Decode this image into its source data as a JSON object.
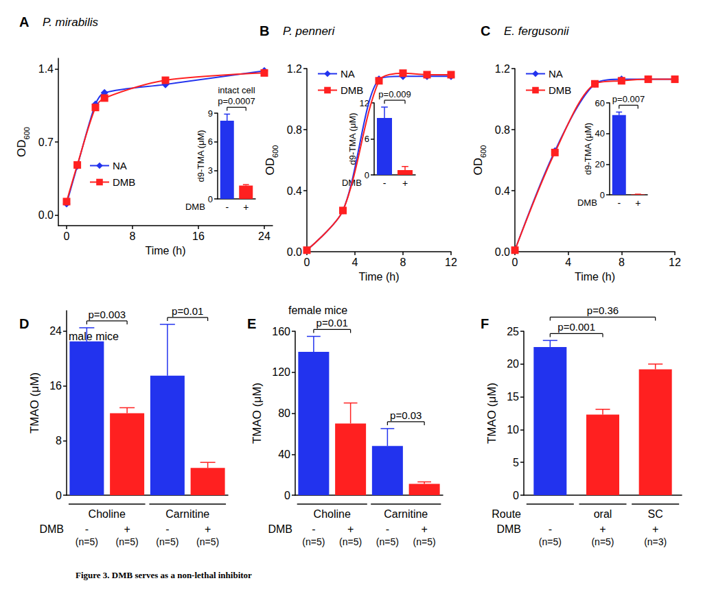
{
  "title": "Figure 3. DMB serves as a non-lethal inhibitor",
  "chart_data": [
    {
      "label": "A",
      "type": "line",
      "title": "P. mirabilis",
      "xlabel": "Time (h)",
      "ylabel": "OD600",
      "xlim": [
        -1,
        25
      ],
      "xticks": [
        0,
        8,
        16,
        24
      ],
      "ylim": [
        -0.1,
        1.5
      ],
      "yticks": [
        {
          "value": 0,
          "label": "0.0"
        },
        0.7,
        1.4
      ],
      "legend": "lower left",
      "x": [
        0,
        1.3,
        3.5,
        4.6,
        12,
        24
      ],
      "series": [
        {
          "name": "NA",
          "color": "#2233ee",
          "marker": "diamond",
          "values": [
            0.11,
            0.47,
            1.06,
            1.17,
            1.25,
            1.38
          ]
        },
        {
          "name": "DMB",
          "color": "#ff2020",
          "marker": "square",
          "values": [
            0.13,
            0.48,
            1.03,
            1.12,
            1.29,
            1.36
          ]
        }
      ],
      "inset": {
        "type": "bar",
        "ylabel": "d9-TMA (μM)",
        "xlabel": "DMB",
        "categories": [
          "-",
          "+"
        ],
        "values": [
          8.2,
          1.4
        ],
        "errors": [
          0.7,
          0.1
        ],
        "colors": [
          "#2233ee",
          "#ff2020"
        ],
        "ylim": [
          0,
          9
        ],
        "yticks": [
          0,
          3,
          6,
          9
        ],
        "annotations": [
          "intact cell"
        ],
        "comparisons": [
          {
            "from": 0,
            "to": 1,
            "label": "p=0.0007"
          }
        ]
      }
    },
    {
      "label": "B",
      "type": "line",
      "title": "P. penneri",
      "xlabel": "Time (h)",
      "ylabel": "OD600",
      "xlim": [
        0,
        12
      ],
      "xticks": [
        0,
        4,
        8,
        12
      ],
      "ylim": [
        0,
        1.2
      ],
      "yticks": [
        {
          "value": 0,
          "label": "0.0"
        },
        0.4,
        0.8,
        1.2
      ],
      "legend": "upper left",
      "x": [
        0,
        3,
        6,
        8,
        10,
        12
      ],
      "series": [
        {
          "name": "NA",
          "color": "#2233ee",
          "marker": "diamond",
          "values": [
            0.01,
            0.27,
            1.13,
            1.15,
            1.15,
            1.15
          ]
        },
        {
          "name": "DMB",
          "color": "#ff2020",
          "marker": "square",
          "values": [
            0.01,
            0.27,
            1.12,
            1.17,
            1.16,
            1.16
          ]
        }
      ],
      "inset": {
        "type": "bar",
        "ylabel": "d9-TMA (μM)",
        "xlabel": "DMB",
        "categories": [
          "-",
          "+"
        ],
        "values": [
          9.5,
          0.8
        ],
        "errors": [
          1.8,
          0.6
        ],
        "colors": [
          "#2233ee",
          "#ff2020"
        ],
        "ylim": [
          0,
          12
        ],
        "yticks": [
          0,
          6,
          12
        ],
        "comparisons": [
          {
            "from": 0,
            "to": 1,
            "label": "p=0.009"
          }
        ]
      }
    },
    {
      "label": "C",
      "type": "line",
      "title": "E. fergusonii",
      "xlabel": "Time (h)",
      "ylabel": "OD600",
      "xlim": [
        0,
        12
      ],
      "xticks": [
        0,
        4,
        8,
        12
      ],
      "ylim": [
        0,
        1.2
      ],
      "yticks": [
        {
          "value": 0,
          "label": "0.0"
        },
        0.4,
        0.8,
        1.2
      ],
      "legend": "upper left",
      "x": [
        0,
        3,
        6,
        8,
        10,
        12
      ],
      "series": [
        {
          "name": "NA",
          "color": "#2233ee",
          "marker": "diamond",
          "values": [
            0.01,
            0.66,
            1.1,
            1.13,
            1.13,
            1.13
          ]
        },
        {
          "name": "DMB",
          "color": "#ff2020",
          "marker": "square",
          "values": [
            0.01,
            0.65,
            1.1,
            1.12,
            1.13,
            1.13
          ]
        }
      ],
      "inset": {
        "type": "bar",
        "ylabel": "d9-TMA (μM)",
        "xlabel": "DMB",
        "categories": [
          "-",
          "+"
        ],
        "values": [
          52,
          0.3
        ],
        "errors": [
          2,
          0.1
        ],
        "colors": [
          "#2233ee",
          "#ff2020"
        ],
        "ylim": [
          0,
          60
        ],
        "yticks": [
          0,
          20,
          40,
          60
        ],
        "comparisons": [
          {
            "from": 0,
            "to": 1,
            "label": "p=0.007"
          }
        ]
      }
    },
    {
      "label": "D",
      "type": "bar",
      "subtitle": "male mice",
      "ylabel": "TMAO (μM)",
      "ylim": [
        0,
        27
      ],
      "yticks": [
        0,
        8,
        16,
        24
      ],
      "values": [
        22.5,
        12,
        17.5,
        4
      ],
      "errors": [
        2,
        0.8,
        7.5,
        0.8
      ],
      "colors": [
        "#2233ee",
        "#ff2020",
        "#2233ee",
        "#ff2020"
      ],
      "x_rows": [
        {
          "labels": [
            "Choline",
            "Carnitine"
          ]
        },
        {
          "title": "DMB",
          "labels": [
            "-",
            "+",
            "-",
            "+"
          ]
        },
        {
          "labels": [
            "(n=5)",
            "(n=5)",
            "(n=5)",
            "(n=5)"
          ]
        }
      ],
      "comparisons": [
        {
          "from": 0,
          "to": 1,
          "label": "p=0.003"
        },
        {
          "from": 2,
          "to": 3,
          "label": "p=0.01"
        }
      ]
    },
    {
      "label": "E",
      "type": "bar",
      "subtitle": "female mice",
      "ylabel": "TMAO (μM)",
      "ylim": [
        0,
        160
      ],
      "yticks": [
        0,
        40,
        80,
        120,
        160
      ],
      "values": [
        140,
        70,
        48,
        11
      ],
      "errors": [
        15,
        20,
        17,
        2
      ],
      "colors": [
        "#2233ee",
        "#ff2020",
        "#2233ee",
        "#ff2020"
      ],
      "x_rows": [
        {
          "labels": [
            "Choline",
            "Carnitine"
          ]
        },
        {
          "title": "DMB",
          "labels": [
            "-",
            "+",
            "-",
            "+"
          ]
        },
        {
          "labels": [
            "(n=5)",
            "(n=5)",
            "(n=5)",
            "(n=5)"
          ]
        }
      ],
      "comparisons": [
        {
          "from": 0,
          "to": 1,
          "label": "p=0.01"
        },
        {
          "from": 2,
          "to": 3,
          "label": "p=0.03"
        }
      ]
    },
    {
      "label": "F",
      "type": "bar",
      "ylabel": "TMAO (μM)",
      "ylim": [
        0,
        25
      ],
      "yticks": [
        0,
        5,
        10,
        15,
        20,
        25
      ],
      "values": [
        22.6,
        12.3,
        19.2
      ],
      "errors": [
        1,
        0.8,
        0.8
      ],
      "colors": [
        "#2233ee",
        "#ff2020",
        "#ff2020"
      ],
      "x_rows": [
        {
          "title": "Route",
          "labels": [
            null,
            "oral",
            "SC"
          ]
        },
        {
          "title": "DMB",
          "labels": [
            "-",
            "+",
            "+"
          ]
        },
        {
          "labels": [
            "(n=5)",
            "(n=5)",
            "(n=3)"
          ]
        }
      ],
      "comparisons": [
        {
          "from": 0,
          "to": 1,
          "label": "p=0.001"
        },
        {
          "from": 0,
          "to": 2,
          "label": "p=0.36"
        }
      ]
    }
  ]
}
